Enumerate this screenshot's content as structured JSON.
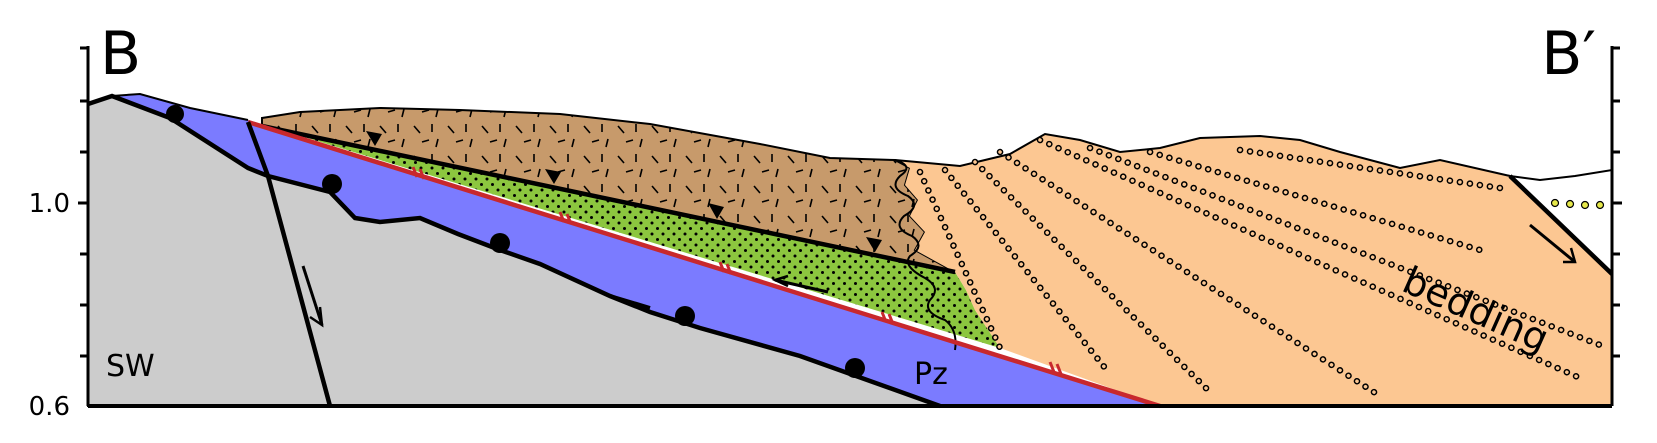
{
  "labels": {
    "left_corner": "B",
    "right_corner": "B′",
    "sw": "SW",
    "pz": "Pz",
    "bedding": "bedding"
  },
  "y_axis": {
    "ticks": [
      "1.0",
      "0.6"
    ]
  },
  "colors": {
    "basement_gray": "#cccccc",
    "blue_unit": "#7b7bff",
    "green_unit": "#8cc63f",
    "brown_unit": "#c79a6b",
    "orange_unit": "#fcc792",
    "red_fault": "#c8282d",
    "yellow_dots": "#e6e84a"
  }
}
